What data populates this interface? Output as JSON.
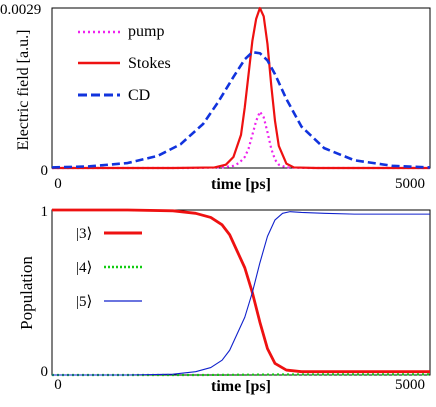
{
  "colors": {
    "pump": "#ee22ee",
    "stokes": "#ee1111",
    "cd": "#1133dd",
    "state3": "#ee1111",
    "state4": "#11cc11",
    "state5": "#1122cc",
    "frame": "#000000"
  },
  "chart_data": [
    {
      "type": "line",
      "title": "",
      "xlabel": "time [ps]",
      "ylabel": "Electric field [a.u.]",
      "xlim": [
        0,
        5000
      ],
      "ylim": [
        0,
        0.0029
      ],
      "xticks": [
        {
          "value": 0,
          "label": "0"
        },
        {
          "value": 5000,
          "label": "5000"
        }
      ],
      "yticks": [
        {
          "value": 0,
          "label": "0"
        },
        {
          "value": 0.0029,
          "label": "0.0029"
        }
      ],
      "legend_position": "top-left",
      "series": [
        {
          "key": "pump",
          "name": "pump",
          "style": "dotted",
          "x": [
            0,
            1800,
            2250,
            2400,
            2475,
            2550,
            2600,
            2650,
            2700,
            2750,
            2800,
            2850,
            2900,
            2950,
            3000,
            3100,
            3400,
            5000
          ],
          "y": [
            0,
            0.0,
            1e-05,
            4e-05,
            9e-05,
            0.0002,
            0.00035,
            0.0006,
            0.00085,
            0.00102,
            0.00092,
            0.00065,
            0.00035,
            0.00015,
            6e-05,
            1e-05,
            0.0,
            0.0
          ]
        },
        {
          "key": "stokes",
          "name": "Stokes",
          "style": "solid",
          "x": [
            0,
            1600,
            2150,
            2300,
            2400,
            2500,
            2550,
            2600,
            2650,
            2700,
            2750,
            2800,
            2850,
            2900,
            2950,
            3000,
            3100,
            3200,
            3500,
            5000
          ],
          "y": [
            0,
            0.0,
            1e-05,
            6e-05,
            0.0002,
            0.0006,
            0.0011,
            0.0017,
            0.0023,
            0.0027,
            0.0029,
            0.00275,
            0.00225,
            0.0015,
            0.00085,
            0.0004,
            8e-05,
            1e-05,
            0.0,
            0.0
          ]
        },
        {
          "key": "cd",
          "name": "CD",
          "style": "dashed",
          "x": [
            0,
            500,
            1000,
            1400,
            1700,
            2000,
            2200,
            2400,
            2550,
            2650,
            2750,
            2850,
            2950,
            3100,
            3300,
            3600,
            4000,
            4500,
            5000
          ],
          "y": [
            1e-05,
            3e-05,
            9e-05,
            0.00022,
            0.00043,
            0.0008,
            0.0012,
            0.00165,
            0.00197,
            0.0021,
            0.00208,
            0.00195,
            0.0017,
            0.00125,
            0.00075,
            0.00036,
            0.00014,
            4e-05,
            1e-05
          ]
        }
      ]
    },
    {
      "type": "line",
      "title": "",
      "xlabel": "time [ps]",
      "ylabel": "Population",
      "xlim": [
        0,
        5000
      ],
      "ylim": [
        0,
        1
      ],
      "xticks": [
        {
          "value": 0,
          "label": "0"
        },
        {
          "value": 5000,
          "label": "5000"
        }
      ],
      "yticks": [
        {
          "value": 0,
          "label": "0"
        },
        {
          "value": 1,
          "label": "1"
        }
      ],
      "legend_position": "top-left",
      "series": [
        {
          "key": "state3",
          "name": "|3⟩",
          "style": "solid-thick",
          "x": [
            0,
            1000,
            1600,
            1900,
            2100,
            2250,
            2350,
            2450,
            2550,
            2650,
            2750,
            2850,
            2950,
            3100,
            3300,
            3600,
            4000,
            5000
          ],
          "y": [
            1.0,
            1.0,
            0.995,
            0.98,
            0.955,
            0.91,
            0.85,
            0.75,
            0.65,
            0.5,
            0.32,
            0.16,
            0.07,
            0.03,
            0.02,
            0.02,
            0.02,
            0.02
          ]
        },
        {
          "key": "state4",
          "name": "|4⟩",
          "style": "dotted",
          "x": [
            0,
            1000,
            2000,
            3000,
            4000,
            5000
          ],
          "y": [
            0.0,
            0.0,
            0.0,
            0.003,
            0.004,
            0.004
          ]
        },
        {
          "key": "state5",
          "name": "|5⟩",
          "style": "solid-thin",
          "x": [
            0,
            1000,
            1600,
            1900,
            2100,
            2250,
            2350,
            2450,
            2550,
            2650,
            2750,
            2850,
            2950,
            3050,
            3150,
            3300,
            3600,
            4000,
            4500,
            5000
          ],
          "y": [
            0.0,
            0.0,
            0.005,
            0.02,
            0.045,
            0.09,
            0.15,
            0.25,
            0.35,
            0.5,
            0.68,
            0.84,
            0.94,
            0.98,
            0.99,
            0.985,
            0.98,
            0.975,
            0.975,
            0.975
          ]
        }
      ]
    }
  ]
}
